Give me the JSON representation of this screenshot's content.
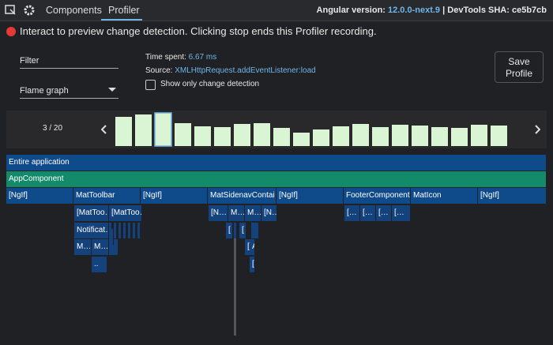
{
  "header": {
    "tabs": [
      "Components",
      "Profiler"
    ],
    "version_label": "Angular version:",
    "version": "12.0.0-next.9",
    "sha_label": "| DevTools SHA:",
    "sha": "ce5b7cb"
  },
  "banner": "Interact to preview change detection. Clicking stop ends this Profiler recording.",
  "controls": {
    "filter": "Filter",
    "view": "Flame graph",
    "time_label": "Time spent:",
    "time_value": "6.67 ms",
    "source_label": "Source:",
    "source_value": "XMLHttpRequest.addEventListener:load",
    "checkbox": "Show only change detection",
    "save": [
      "Save",
      "Profile"
    ]
  },
  "frames": {
    "counter": "3 / 20",
    "selected": 2,
    "values": [
      37,
      40,
      42,
      29,
      25,
      24,
      28,
      29,
      23,
      17,
      21,
      25,
      28,
      24,
      27,
      26,
      24,
      23,
      27,
      26
    ]
  },
  "flame": {
    "nodes": [
      "Entire application",
      "AppComponent",
      "[NgIf]",
      "MatToolbar",
      "[NgIf]",
      "MatSidenavContai…",
      "[NgIf]",
      "FooterComponent",
      "MatIcon",
      "[NgIf]",
      "[MatToo…",
      "[MatToo…",
      "[N…",
      "M…",
      "M…",
      "[N…",
      "[…",
      "[…",
      "[…",
      "[…",
      "Notificat…",
      "[",
      "[",
      "M…",
      "M…",
      "[",
      "A",
      "..",
      "["
    ]
  }
}
